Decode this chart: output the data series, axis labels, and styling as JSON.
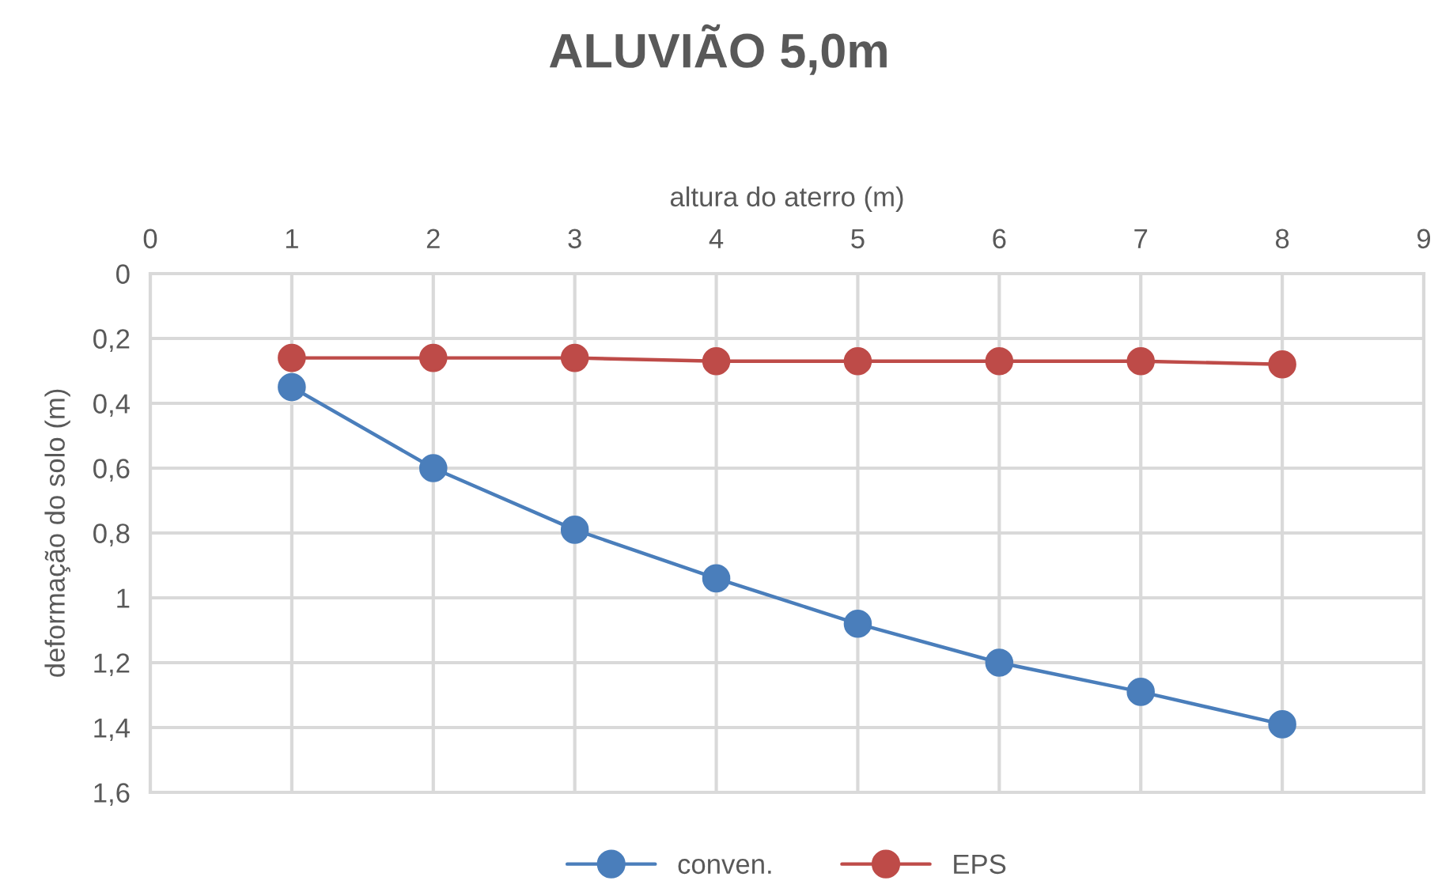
{
  "chart_data": {
    "type": "line",
    "title": "ALUVIÃO 5,0m",
    "xlabel": "altura do aterro (m)",
    "ylabel": "deformação do solo (m)",
    "x": [
      1,
      2,
      3,
      4,
      5,
      6,
      7,
      8
    ],
    "series": [
      {
        "name": "conven.",
        "color": "#4a7ebb",
        "values": [
          0.35,
          0.6,
          0.79,
          0.94,
          1.08,
          1.2,
          1.29,
          1.39
        ]
      },
      {
        "name": "EPS",
        "color": "#be4b48",
        "values": [
          0.26,
          0.26,
          0.26,
          0.27,
          0.27,
          0.27,
          0.27,
          0.28
        ]
      }
    ],
    "xlim": [
      0,
      9
    ],
    "xticks": [
      0,
      1,
      2,
      3,
      4,
      5,
      6,
      7,
      8,
      9
    ],
    "ylim": [
      1.6,
      0
    ],
    "yticks": [
      0,
      {
        "value": 0.2,
        "label": "0,2"
      },
      {
        "value": 0.4,
        "label": "0,4"
      },
      {
        "value": 0.6,
        "label": "0,6"
      },
      {
        "value": 0.8,
        "label": "0,8"
      },
      1,
      {
        "value": 1.2,
        "label": "1,2"
      },
      {
        "value": 1.4,
        "label": "1,4"
      },
      {
        "value": 1.6,
        "label": "1,6"
      }
    ],
    "grid": true,
    "legend": "bottom",
    "marker": "circle",
    "line_style": "solid"
  }
}
